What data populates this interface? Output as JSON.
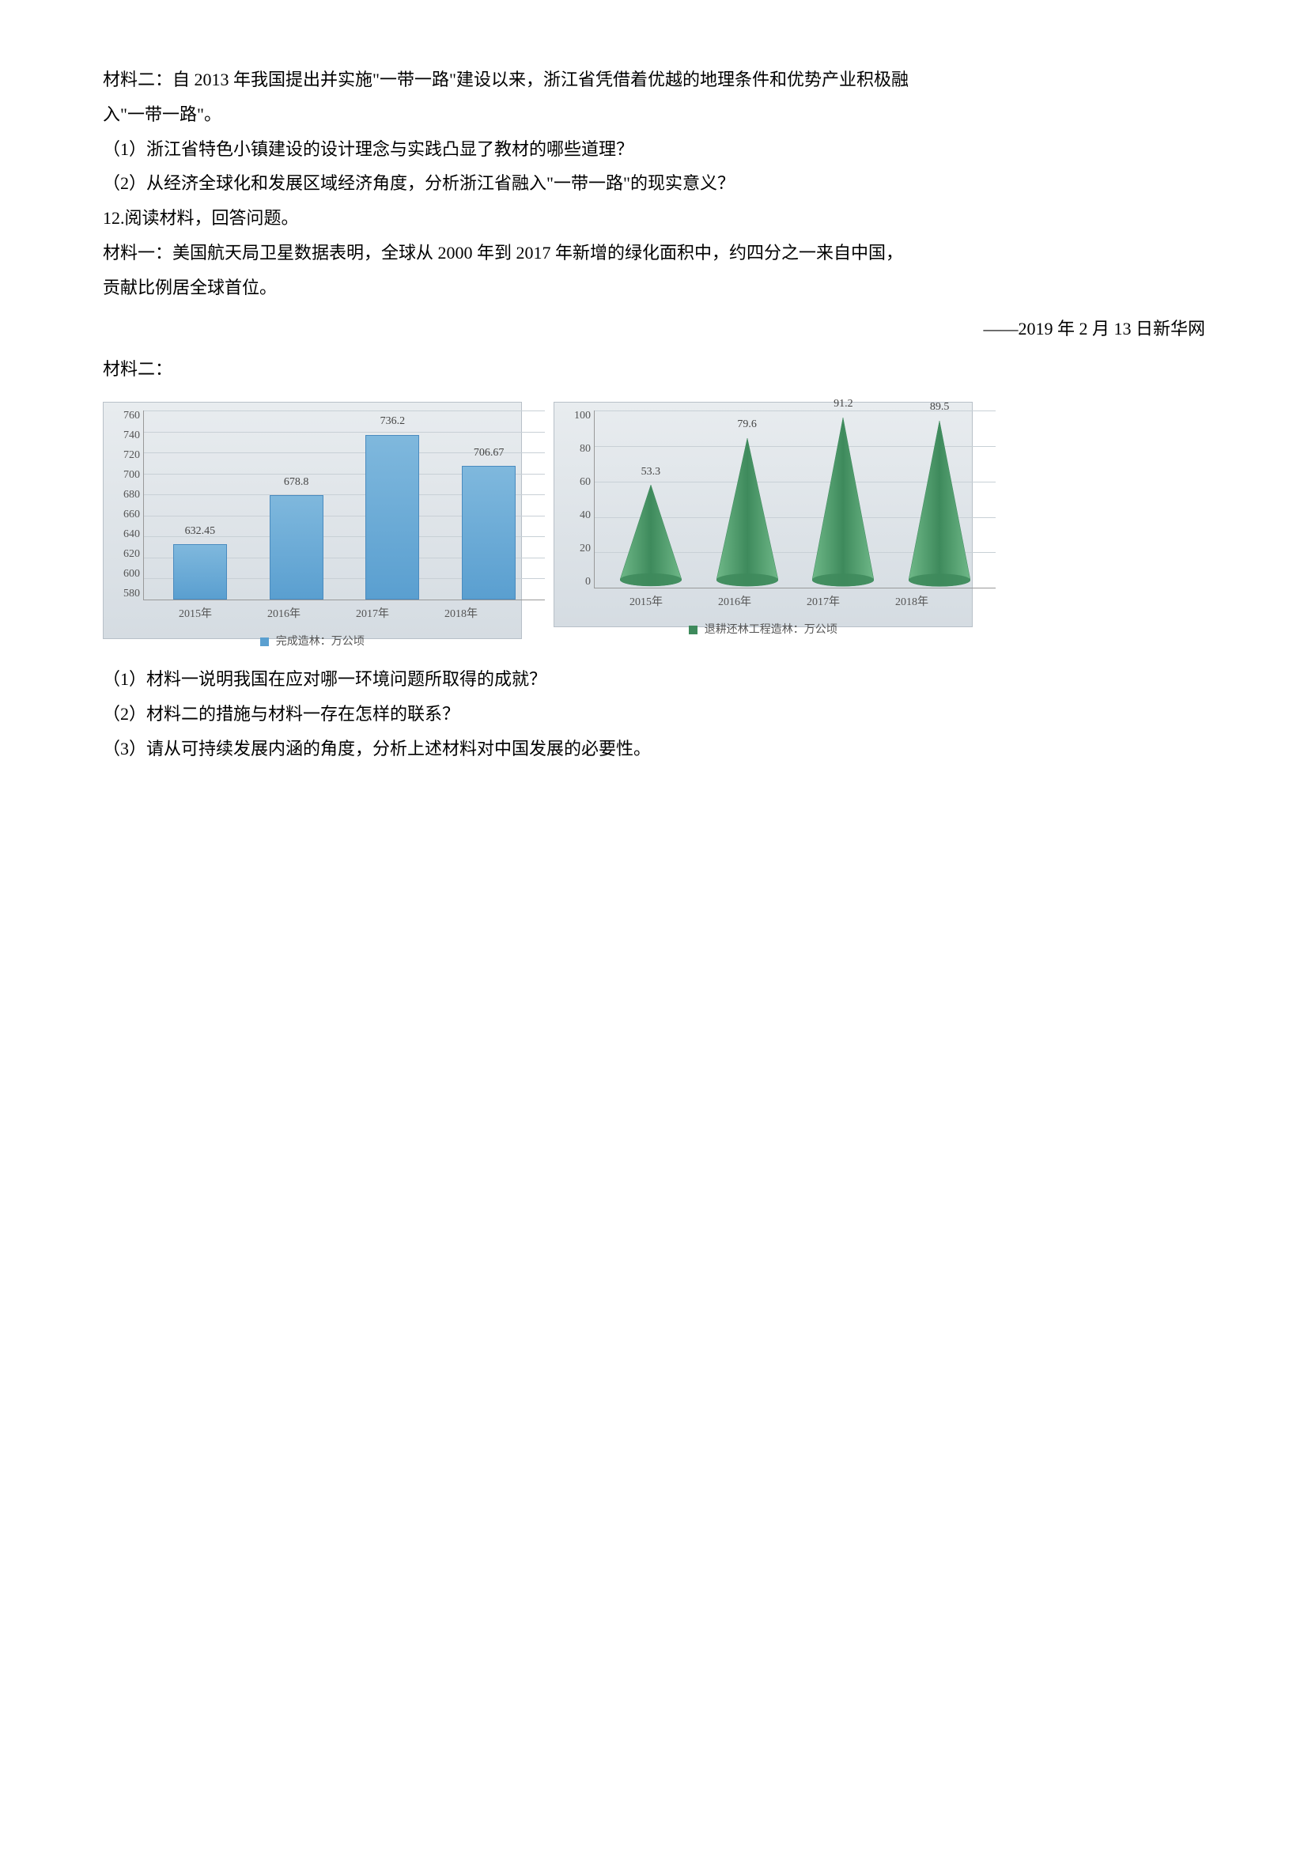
{
  "para1": {
    "line1": "材料二：自 2013 年我国提出并实施\"一带一路\"建设以来，浙江省凭借着优越的地理条件和优势产业积极融",
    "line2": "入\"一带一路\"。"
  },
  "q1_1": "（1）浙江省特色小镇建设的设计理念与实践凸显了教材的哪些道理？",
  "q1_2": "（2）从经济全球化和发展区域经济角度，分析浙江省融入\"一带一路\"的现实意义？",
  "q12_head": "12.阅读材料，回答问题。",
  "mat1": {
    "line1": "材料一：美国航天局卫星数据表明，全球从 2000 年到 2017 年新增的绿化面积中，约四分之一来自中国，",
    "line2": "贡献比例居全球首位。"
  },
  "attribution": "——2019 年 2 月 13 日新华网",
  "mat2_label": "材料二：",
  "chart1": {
    "categories": [
      "2015年",
      "2016年",
      "2017年",
      "2018年"
    ],
    "values": [
      632.45,
      678.8,
      736.2,
      706.67
    ],
    "ylim": [
      580,
      760
    ],
    "ytick_step": 20,
    "legend": "完成造林：万公顷",
    "bar_color": "#5a9fd0",
    "bar_gradient_top": "#7fb8dd",
    "background_gradient_top": "#e8ecef",
    "background_gradient_bottom": "#d5dce2",
    "grid_color": "#c8d0d6",
    "label_fontsize": 14
  },
  "chart2": {
    "categories": [
      "2015年",
      "2016年",
      "2017年",
      "2018年"
    ],
    "values": [
      53.3,
      79.6,
      91.2,
      89.5
    ],
    "ylim": [
      0,
      100
    ],
    "ytick_step": 20,
    "legend": "退耕还林工程造林：万公顷",
    "cone_color": "#3e8a5c",
    "cone_gradient_light": "#6fb888",
    "background_gradient_top": "#e8ecef",
    "background_gradient_bottom": "#d5dce2",
    "grid_color": "#c8d0d6",
    "label_fontsize": 14
  },
  "q2_1": "（1）材料一说明我国在应对哪一环境问题所取得的成就？",
  "q2_2": "（2）材料二的措施与材料一存在怎样的联系？",
  "q2_3": "（3）请从可持续发展内涵的角度，分析上述材料对中国发展的必要性。"
}
